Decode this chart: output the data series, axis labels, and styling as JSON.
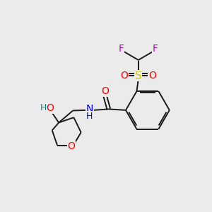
{
  "background_color": "#ebebeb",
  "fig_size": [
    3.0,
    3.0
  ],
  "dpi": 100,
  "bond_color": "#1a1a1a",
  "colors": {
    "O": "#ff0000",
    "N": "#0000ee",
    "S": "#cccc00",
    "F": "#cc00cc",
    "H_label": "#008080",
    "C": "#1a1a1a"
  },
  "line_width": 1.4,
  "font_size": 9
}
